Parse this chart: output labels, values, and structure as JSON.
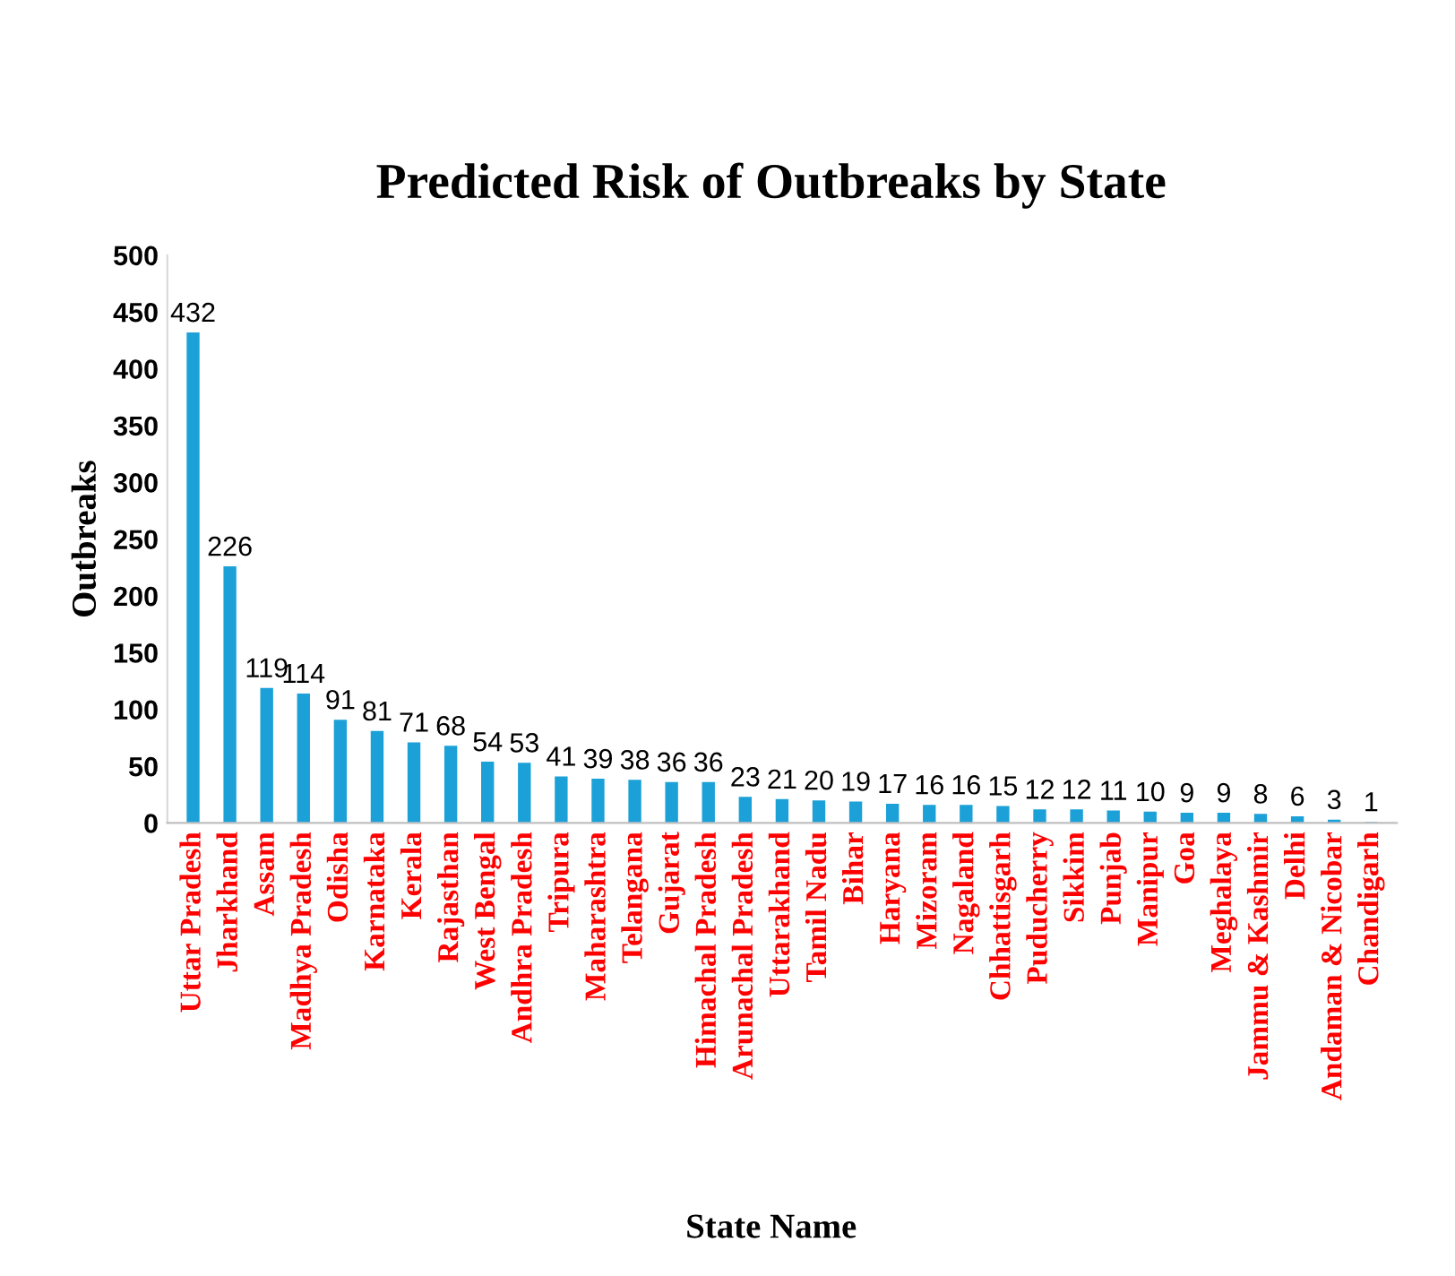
{
  "chart_data": {
    "type": "bar",
    "title": "Predicted Risk of Outbreaks by State",
    "xlabel": "State Name",
    "ylabel": "Outbreaks",
    "categories": [
      "Uttar Pradesh",
      "Jharkhand",
      "Assam",
      "Madhya Pradesh",
      "Odisha",
      "Karnataka",
      "Kerala",
      "Rajasthan",
      "West Bengal",
      "Andhra Pradesh",
      "Tripura",
      "Maharashtra",
      "Telangana",
      "Gujarat",
      "Himachal Pradesh",
      "Arunachal Pradesh",
      "Uttarakhand",
      "Tamil Nadu",
      "Bihar",
      "Haryana",
      "Mizoram",
      "Nagaland",
      "Chhattisgarh",
      "Puducherry",
      "Sikkim",
      "Punjab",
      "Manipur",
      "Goa",
      "Meghalaya",
      "Jammu & Kashmir",
      "Delhi",
      "Andaman & Nicobar",
      "Chandigarh"
    ],
    "values": [
      432,
      226,
      119,
      114,
      91,
      81,
      71,
      68,
      54,
      53,
      41,
      39,
      38,
      36,
      36,
      23,
      21,
      20,
      19,
      17,
      16,
      16,
      15,
      12,
      12,
      11,
      10,
      9,
      9,
      8,
      6,
      3,
      1
    ],
    "color": "#1ba1d8",
    "ylim": [
      0,
      500
    ],
    "yticks": [
      0,
      50,
      100,
      150,
      200,
      250,
      300,
      350,
      400,
      450,
      500
    ],
    "data_labels": true,
    "grid": false,
    "legend": false
  }
}
